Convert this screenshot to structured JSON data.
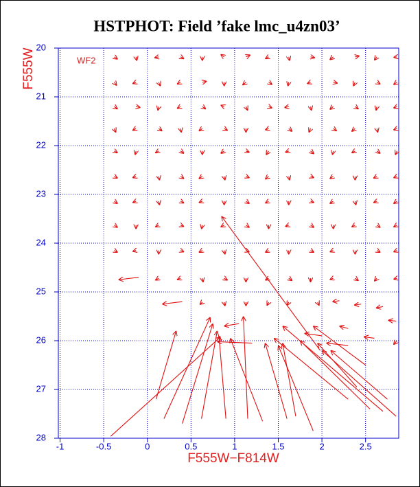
{
  "chart_data": {
    "type": "quiver",
    "title": "HSTPHOT: Field ’fake lmc_u4zn03’",
    "xlabel": "F555W−F814W",
    "ylabel": "F555W",
    "annotation": "WF2",
    "xlim": [
      -1.02,
      2.88
    ],
    "ylim": [
      20,
      28
    ],
    "y_inverted": true,
    "xticks": [
      -1,
      -0.5,
      0,
      0.5,
      1,
      1.5,
      2,
      2.5
    ],
    "yticks": [
      20,
      21,
      22,
      23,
      24,
      25,
      26,
      27,
      28
    ],
    "grid": true,
    "grid_color": "#0000c8",
    "tick_color": "#0000c8",
    "label_color": "#e02020",
    "color": "#e01010",
    "arrows": [
      [
        -0.38,
        20.18,
        -0.34,
        20.23
      ],
      [
        -0.13,
        20.18,
        -0.12,
        20.26
      ],
      [
        0.13,
        20.18,
        0.08,
        20.2
      ],
      [
        0.38,
        20.18,
        0.42,
        20.22
      ],
      [
        0.63,
        20.18,
        0.63,
        20.26
      ],
      [
        0.88,
        20.18,
        0.84,
        20.13
      ],
      [
        1.13,
        20.18,
        1.18,
        20.14
      ],
      [
        1.39,
        20.18,
        1.35,
        20.22
      ],
      [
        1.62,
        20.18,
        1.63,
        20.26
      ],
      [
        1.87,
        20.18,
        1.92,
        20.2
      ],
      [
        2.13,
        20.18,
        2.09,
        20.24
      ],
      [
        2.38,
        20.18,
        2.43,
        20.16
      ],
      [
        2.63,
        20.18,
        2.6,
        20.25
      ],
      [
        2.86,
        20.18,
        2.82,
        20.19
      ],
      [
        -0.38,
        20.7,
        -0.35,
        20.77
      ],
      [
        -0.13,
        20.7,
        -0.17,
        20.73
      ],
      [
        0.13,
        20.7,
        0.15,
        20.78
      ],
      [
        0.38,
        20.7,
        0.34,
        20.74
      ],
      [
        0.63,
        20.7,
        0.68,
        20.68
      ],
      [
        0.88,
        20.7,
        0.88,
        20.78
      ],
      [
        1.13,
        20.7,
        1.09,
        20.76
      ],
      [
        1.39,
        20.7,
        1.43,
        20.75
      ],
      [
        1.62,
        20.7,
        1.61,
        20.78
      ],
      [
        1.87,
        20.7,
        1.83,
        20.73
      ],
      [
        2.13,
        20.7,
        2.18,
        20.72
      ],
      [
        2.38,
        20.7,
        2.36,
        20.78
      ],
      [
        2.63,
        20.7,
        2.67,
        20.74
      ],
      [
        2.86,
        20.7,
        2.82,
        20.75
      ],
      [
        -0.38,
        21.2,
        -0.34,
        21.25
      ],
      [
        -0.13,
        21.2,
        -0.08,
        21.22
      ],
      [
        0.13,
        21.2,
        0.12,
        21.28
      ],
      [
        0.38,
        21.2,
        0.34,
        21.24
      ],
      [
        0.63,
        21.2,
        0.67,
        21.25
      ],
      [
        0.88,
        21.2,
        0.84,
        21.17
      ],
      [
        1.13,
        21.2,
        1.15,
        21.28
      ],
      [
        1.39,
        21.2,
        1.43,
        21.23
      ],
      [
        1.62,
        21.2,
        1.57,
        21.22
      ],
      [
        1.87,
        21.2,
        1.88,
        21.28
      ],
      [
        2.13,
        21.2,
        2.09,
        21.26
      ],
      [
        2.38,
        21.2,
        2.42,
        21.25
      ],
      [
        2.63,
        21.2,
        2.62,
        21.28
      ],
      [
        2.86,
        21.2,
        2.82,
        21.23
      ],
      [
        -0.38,
        21.65,
        -0.36,
        21.73
      ],
      [
        -0.13,
        21.65,
        -0.17,
        21.69
      ],
      [
        0.13,
        21.65,
        0.17,
        21.7
      ],
      [
        0.38,
        21.65,
        0.39,
        21.73
      ],
      [
        0.63,
        21.65,
        0.59,
        21.7
      ],
      [
        0.88,
        21.65,
        0.92,
        21.69
      ],
      [
        1.13,
        21.65,
        1.13,
        21.73
      ],
      [
        1.39,
        21.65,
        1.35,
        21.68
      ],
      [
        1.62,
        21.65,
        1.66,
        21.71
      ],
      [
        1.87,
        21.65,
        1.85,
        21.73
      ],
      [
        2.13,
        21.65,
        2.17,
        21.7
      ],
      [
        2.38,
        21.65,
        2.34,
        21.71
      ],
      [
        2.63,
        21.65,
        2.64,
        21.73
      ],
      [
        2.86,
        21.65,
        2.82,
        21.68
      ],
      [
        -0.38,
        22.11,
        -0.34,
        22.15
      ],
      [
        -0.13,
        22.11,
        -0.14,
        22.19
      ],
      [
        0.13,
        22.11,
        0.09,
        22.15
      ],
      [
        0.38,
        22.11,
        0.42,
        22.16
      ],
      [
        0.63,
        22.11,
        0.63,
        22.19
      ],
      [
        0.88,
        22.11,
        0.84,
        22.16
      ],
      [
        1.13,
        22.11,
        1.17,
        22.14
      ],
      [
        1.39,
        22.11,
        1.36,
        22.19
      ],
      [
        1.62,
        22.11,
        1.58,
        22.14
      ],
      [
        1.87,
        22.11,
        1.91,
        22.17
      ],
      [
        2.13,
        22.11,
        2.12,
        22.19
      ],
      [
        2.38,
        22.11,
        2.34,
        22.15
      ],
      [
        2.63,
        22.11,
        2.67,
        22.16
      ],
      [
        2.86,
        22.11,
        2.84,
        22.19
      ],
      [
        -0.38,
        22.63,
        -0.34,
        22.67
      ],
      [
        -0.13,
        22.63,
        -0.17,
        22.66
      ],
      [
        0.13,
        22.63,
        0.14,
        22.71
      ],
      [
        0.38,
        22.63,
        0.42,
        22.68
      ],
      [
        0.63,
        22.63,
        0.59,
        22.68
      ],
      [
        0.88,
        22.63,
        0.89,
        22.71
      ],
      [
        1.13,
        22.63,
        1.17,
        22.66
      ],
      [
        1.39,
        22.63,
        1.35,
        22.69
      ],
      [
        1.62,
        22.63,
        1.63,
        22.71
      ],
      [
        1.87,
        22.63,
        1.91,
        22.66
      ],
      [
        2.13,
        22.63,
        2.09,
        22.68
      ],
      [
        2.38,
        22.63,
        2.38,
        22.71
      ],
      [
        2.63,
        22.63,
        2.59,
        22.67
      ],
      [
        2.86,
        22.63,
        2.82,
        22.66
      ],
      [
        -0.38,
        23.14,
        -0.34,
        23.19
      ],
      [
        -0.13,
        23.14,
        -0.17,
        23.17
      ],
      [
        0.13,
        23.14,
        0.14,
        23.22
      ],
      [
        0.38,
        23.14,
        0.42,
        23.18
      ],
      [
        0.63,
        23.14,
        0.59,
        23.17
      ],
      [
        0.88,
        23.14,
        0.88,
        23.22
      ],
      [
        1.13,
        23.14,
        1.17,
        23.19
      ],
      [
        1.39,
        23.14,
        1.35,
        23.18
      ],
      [
        1.62,
        23.14,
        1.62,
        23.22
      ],
      [
        1.87,
        23.14,
        1.91,
        23.17
      ],
      [
        2.13,
        23.14,
        2.09,
        23.19
      ],
      [
        2.38,
        23.14,
        2.39,
        23.22
      ],
      [
        2.63,
        23.14,
        2.59,
        23.17
      ],
      [
        2.86,
        23.14,
        2.82,
        23.19
      ],
      [
        -0.38,
        23.63,
        -0.34,
        23.68
      ],
      [
        -0.13,
        23.63,
        -0.13,
        23.71
      ],
      [
        0.13,
        23.63,
        0.09,
        23.67
      ],
      [
        0.38,
        23.63,
        0.42,
        23.66
      ],
      [
        0.63,
        23.63,
        0.62,
        23.71
      ],
      [
        0.88,
        23.63,
        0.84,
        23.67
      ],
      [
        1.13,
        23.63,
        1.17,
        23.68
      ],
      [
        1.39,
        23.63,
        1.39,
        23.71
      ],
      [
        1.62,
        23.63,
        1.58,
        23.66
      ],
      [
        1.87,
        23.63,
        1.91,
        23.68
      ],
      [
        2.13,
        23.63,
        2.13,
        23.71
      ],
      [
        2.38,
        23.63,
        2.34,
        23.67
      ],
      [
        2.63,
        23.63,
        2.67,
        23.68
      ],
      [
        2.86,
        23.63,
        2.82,
        23.67
      ],
      [
        -0.38,
        24.15,
        -0.34,
        24.19
      ],
      [
        -0.13,
        24.15,
        -0.17,
        24.17
      ],
      [
        0.13,
        24.15,
        0.13,
        24.23
      ],
      [
        0.38,
        24.15,
        0.42,
        24.18
      ],
      [
        0.63,
        24.15,
        0.59,
        24.19
      ],
      [
        0.88,
        24.15,
        0.89,
        24.23
      ],
      [
        1.13,
        24.15,
        1.17,
        24.18
      ],
      [
        1.39,
        24.15,
        1.35,
        24.19
      ],
      [
        1.62,
        24.15,
        1.62,
        24.23
      ],
      [
        1.87,
        24.15,
        1.91,
        24.19
      ],
      [
        2.13,
        24.15,
        2.09,
        24.18
      ],
      [
        2.38,
        24.15,
        2.38,
        24.23
      ],
      [
        2.63,
        24.15,
        2.67,
        24.19
      ],
      [
        2.86,
        24.15,
        2.82,
        24.18
      ],
      [
        0.13,
        24.72,
        0.09,
        24.76
      ],
      [
        0.38,
        24.72,
        0.34,
        24.75
      ],
      [
        0.63,
        24.72,
        0.64,
        24.8
      ],
      [
        0.88,
        24.72,
        0.92,
        24.76
      ],
      [
        1.13,
        24.72,
        1.13,
        24.8
      ],
      [
        1.39,
        24.72,
        1.35,
        24.76
      ],
      [
        1.62,
        24.72,
        1.66,
        24.77
      ],
      [
        1.87,
        24.72,
        1.87,
        24.8
      ],
      [
        2.13,
        24.72,
        2.09,
        24.75
      ],
      [
        2.38,
        24.72,
        2.42,
        24.77
      ],
      [
        2.63,
        24.72,
        2.6,
        24.78
      ],
      [
        2.86,
        24.72,
        2.82,
        24.74
      ],
      [
        0.63,
        25.21,
        0.6,
        25.26
      ],
      [
        0.88,
        25.21,
        0.89,
        25.29
      ],
      [
        1.13,
        25.21,
        1.13,
        25.29
      ],
      [
        1.39,
        25.21,
        1.37,
        25.28
      ],
      [
        1.62,
        25.21,
        1.6,
        25.28
      ],
      [
        1.95,
        25.21,
        1.97,
        25.28
      ],
      [
        2.2,
        25.18,
        2.12,
        25.2
      ],
      [
        2.45,
        25.25,
        2.37,
        25.27
      ],
      [
        2.7,
        25.3,
        2.62,
        25.33
      ],
      [
        2.3,
        25.75,
        2.2,
        25.7
      ],
      [
        2.6,
        25.95,
        2.48,
        25.92
      ],
      [
        2.86,
        26.0,
        2.82,
        26.08
      ],
      [
        2.85,
        25.6,
        2.76,
        25.58
      ],
      [
        -0.42,
        27.96,
        0.84,
        25.92
      ],
      [
        0.1,
        27.2,
        0.33,
        25.8
      ],
      [
        0.19,
        27.6,
        0.72,
        25.52
      ],
      [
        0.4,
        27.7,
        0.75,
        25.65
      ],
      [
        0.62,
        27.6,
        0.8,
        25.8
      ],
      [
        0.9,
        27.6,
        0.82,
        25.9
      ],
      [
        1.15,
        27.6,
        1.1,
        25.5
      ],
      [
        1.32,
        27.65,
        0.95,
        25.95
      ],
      [
        1.6,
        27.6,
        1.35,
        26.05
      ],
      [
        1.9,
        27.85,
        1.5,
        26.1
      ],
      [
        1.7,
        27.55,
        1.55,
        26.05
      ],
      [
        2.3,
        27.2,
        1.45,
        25.95
      ],
      [
        2.55,
        27.4,
        1.75,
        26.0
      ],
      [
        2.7,
        27.45,
        1.55,
        25.7
      ],
      [
        2.85,
        27.55,
        2.0,
        26.2
      ],
      [
        2.4,
        26.95,
        1.95,
        26.05
      ],
      [
        2.5,
        26.5,
        1.9,
        25.7
      ],
      [
        2.75,
        27.2,
        2.1,
        26.2
      ],
      [
        1.98,
        26.2,
        0.85,
        23.45
      ],
      [
        -0.1,
        24.7,
        -0.33,
        24.75
      ],
      [
        0.4,
        25.2,
        0.17,
        25.25
      ],
      [
        1.2,
        26.05,
        0.8,
        26.02
      ],
      [
        1.05,
        25.65,
        0.88,
        25.7
      ],
      [
        2.0,
        25.9,
        1.8,
        25.85
      ],
      [
        2.3,
        26.1,
        2.05,
        26.05
      ]
    ]
  }
}
